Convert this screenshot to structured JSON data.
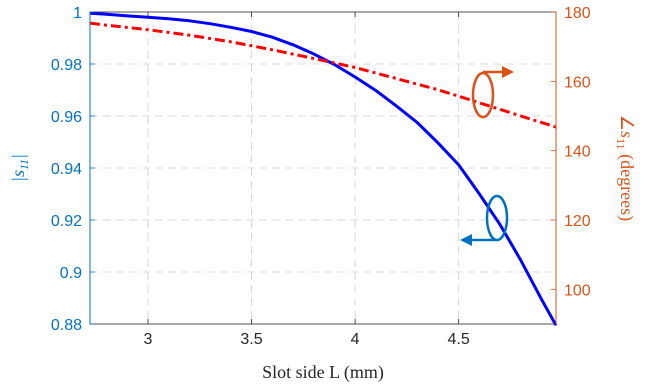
{
  "chart_data": {
    "type": "line",
    "xlabel": "Slot side L (mm)",
    "ylabel_left": "|s11|",
    "ylabel_right": "∠s11 (degrees)",
    "xlim": [
      2.72,
      4.97
    ],
    "ylim_left": [
      0.88,
      1.0
    ],
    "ylim_right": [
      90,
      180
    ],
    "x_ticks": [
      "3",
      "3.5",
      "4",
      "4.5"
    ],
    "x_tick_values": [
      3,
      3.5,
      4,
      4.5
    ],
    "y_left_ticks": [
      "0.88",
      "0.9",
      "0.92",
      "0.94",
      "0.96",
      "0.98",
      "1"
    ],
    "y_left_tick_values": [
      0.88,
      0.9,
      0.92,
      0.94,
      0.96,
      0.98,
      1.0
    ],
    "y_right_ticks": [
      "100",
      "120",
      "140",
      "160",
      "180"
    ],
    "y_right_tick_values": [
      100,
      120,
      140,
      160,
      180
    ],
    "grid": true,
    "colors": {
      "left_axis": "#0072BD",
      "right_axis": "#D95319",
      "magnitude_line": "#0000FF",
      "phase_line": "#FF0000",
      "grid": "#cfcfcf"
    },
    "series": [
      {
        "axis": "left",
        "style": "solid",
        "x": [
          2.72,
          2.8,
          2.9,
          3.0,
          3.1,
          3.2,
          3.3,
          3.4,
          3.5,
          3.6,
          3.7,
          3.8,
          3.9,
          4.0,
          4.1,
          4.2,
          4.3,
          4.4,
          4.5,
          4.6,
          4.7,
          4.8,
          4.9,
          4.97
        ],
        "values": [
          0.9995,
          0.9991,
          0.9985,
          0.998,
          0.9974,
          0.9966,
          0.9955,
          0.9941,
          0.9925,
          0.9903,
          0.9874,
          0.9839,
          0.9798,
          0.975,
          0.9698,
          0.9638,
          0.9575,
          0.9497,
          0.9412,
          0.93,
          0.9182,
          0.9045,
          0.8895,
          0.8795
        ]
      },
      {
        "axis": "right",
        "style": "dashdot",
        "x": [
          2.72,
          2.8,
          3.0,
          3.2,
          3.4,
          3.6,
          3.8,
          4.0,
          4.2,
          4.4,
          4.6,
          4.8,
          4.97
        ],
        "values": [
          176.8,
          176.2,
          174.9,
          173.3,
          171.4,
          169.1,
          166.6,
          164.0,
          160.8,
          157.6,
          153.8,
          150.0,
          146.8
        ]
      }
    ]
  }
}
